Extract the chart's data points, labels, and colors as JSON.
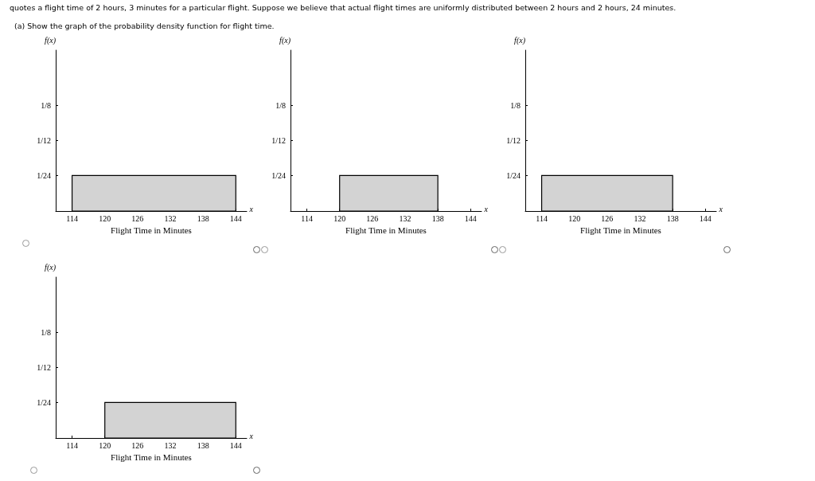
{
  "chart_data": [
    {
      "type": "histogram",
      "title": "quotes a flight time of 2 hours, 3 minutes for a particular flight. Suppose we believe that actual flight times are uniformly distributed between 2 hours and 2 hours, 24 minutes.",
      "subtitle": "(a) Show the graph of the probability density function for flight time.",
      "xlabel": "Flight Time in Minutes",
      "ylabel": "f(x)",
      "annotations": [
        "x"
      ],
      "bins": [
        114,
        144
      ],
      "values": [
        0.042
      ],
      "color": "#d3d3d3",
      "xlim": [
        111,
        146
      ],
      "xticks": [
        114,
        120,
        126,
        132,
        138,
        144
      ],
      "ylim": [
        0,
        0.19
      ],
      "yticks": [
        {
          "value": 0.0417,
          "label": "1/24"
        },
        {
          "value": 0.0833,
          "label": "1/12"
        },
        {
          "value": 0.125,
          "label": "1/8"
        }
      ]
    },
    {
      "type": "histogram",
      "xlabel": "Flight Time in Minutes",
      "ylabel": "f(x)",
      "annotations": [
        "x"
      ],
      "bins": [
        120,
        138
      ],
      "values": [
        0.042
      ],
      "color": "#d3d3d3",
      "xlim": [
        111,
        146
      ],
      "xticks": [
        114,
        120,
        126,
        132,
        138,
        144
      ],
      "ylim": [
        0,
        0.19
      ],
      "yticks": [
        {
          "value": 0.0417,
          "label": "1/24"
        },
        {
          "value": 0.0833,
          "label": "1/12"
        },
        {
          "value": 0.125,
          "label": "1/8"
        }
      ]
    },
    {
      "type": "histogram",
      "xlabel": "Flight Time in Minutes",
      "ylabel": "f(x)",
      "annotations": [
        "x"
      ],
      "bins": [
        114,
        138
      ],
      "values": [
        0.042
      ],
      "color": "#d3d3d3",
      "xlim": [
        111,
        146
      ],
      "xticks": [
        114,
        120,
        126,
        132,
        138,
        144
      ],
      "ylim": [
        0,
        0.19
      ],
      "yticks": [
        {
          "value": 0.0417,
          "label": "1/24"
        },
        {
          "value": 0.0833,
          "label": "1/12"
        },
        {
          "value": 0.125,
          "label": "1/8"
        }
      ]
    },
    {
      "type": "histogram",
      "xlabel": "Flight Time in Minutes",
      "ylabel": "f(x)",
      "annotations": [
        "x"
      ],
      "bins": [
        120,
        144
      ],
      "values": [
        0.042
      ],
      "color": "#d3d3d3",
      "xlim": [
        111,
        146
      ],
      "xticks": [
        114,
        120,
        126,
        132,
        138,
        144
      ],
      "ylim": [
        0,
        0.19
      ],
      "yticks": [
        {
          "value": 0.0417,
          "label": "1/24"
        },
        {
          "value": 0.0833,
          "label": "1/12"
        },
        {
          "value": 0.125,
          "label": "1/8"
        }
      ]
    }
  ]
}
